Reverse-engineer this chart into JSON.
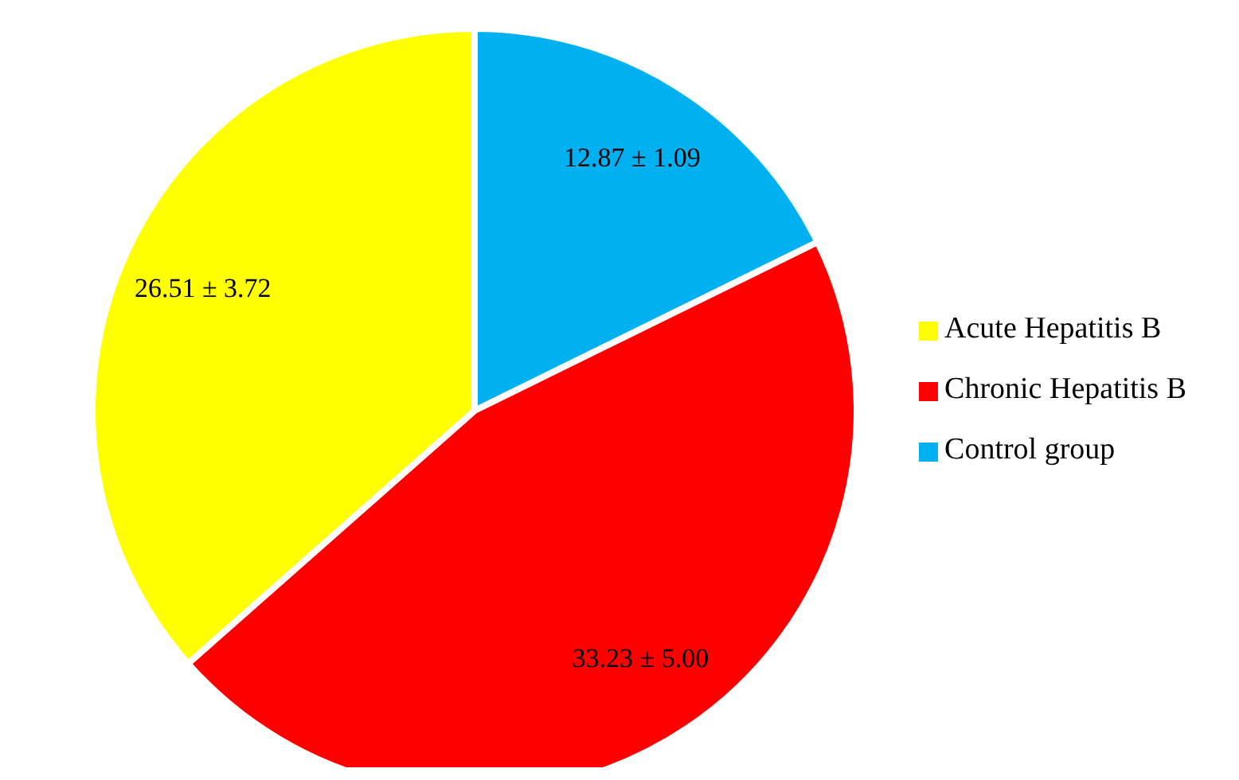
{
  "chart_data": {
    "type": "pie",
    "categories": [
      "Control group",
      "Chronic Hepatitis B",
      "Acute Hepatitis B"
    ],
    "values": [
      12.87,
      33.23,
      26.51
    ],
    "colors": [
      "#00b0f0",
      "#ff0000",
      "#ffff00"
    ],
    "value_labels": [
      "12.87 ± 1.09",
      "33.23 ± 5.00",
      "26.51 ± 3.72"
    ],
    "legend": "right"
  }
}
